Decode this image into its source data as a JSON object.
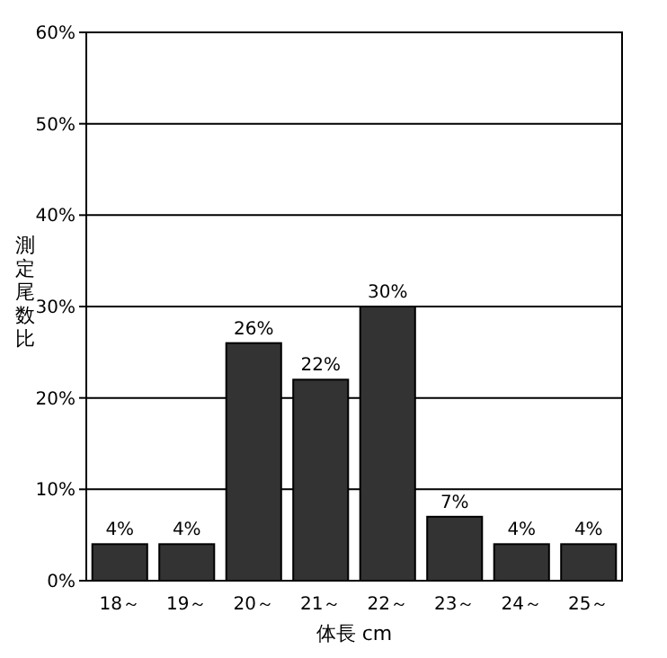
{
  "chart_data": {
    "type": "bar",
    "xlabel": "体長 cm",
    "ylabel": "測定尾数比",
    "categories": [
      "18～",
      "19～",
      "20～",
      "21～",
      "22～",
      "23～",
      "24～",
      "25～"
    ],
    "values": [
      4,
      4,
      26,
      22,
      30,
      7,
      4,
      4
    ],
    "value_labels": [
      "4%",
      "4%",
      "26%",
      "22%",
      "30%",
      "7%",
      "4%",
      "4%"
    ],
    "color": "#333333",
    "ylim": [
      0,
      60
    ],
    "yticks": [
      {
        "value": 0,
        "label": "0%"
      },
      {
        "value": 10,
        "label": "10%"
      },
      {
        "value": 20,
        "label": "20%"
      },
      {
        "value": 30,
        "label": "30%"
      },
      {
        "value": 40,
        "label": "40%"
      },
      {
        "value": 50,
        "label": "50%"
      },
      {
        "value": 60,
        "label": "60%"
      }
    ],
    "grid": "y"
  }
}
